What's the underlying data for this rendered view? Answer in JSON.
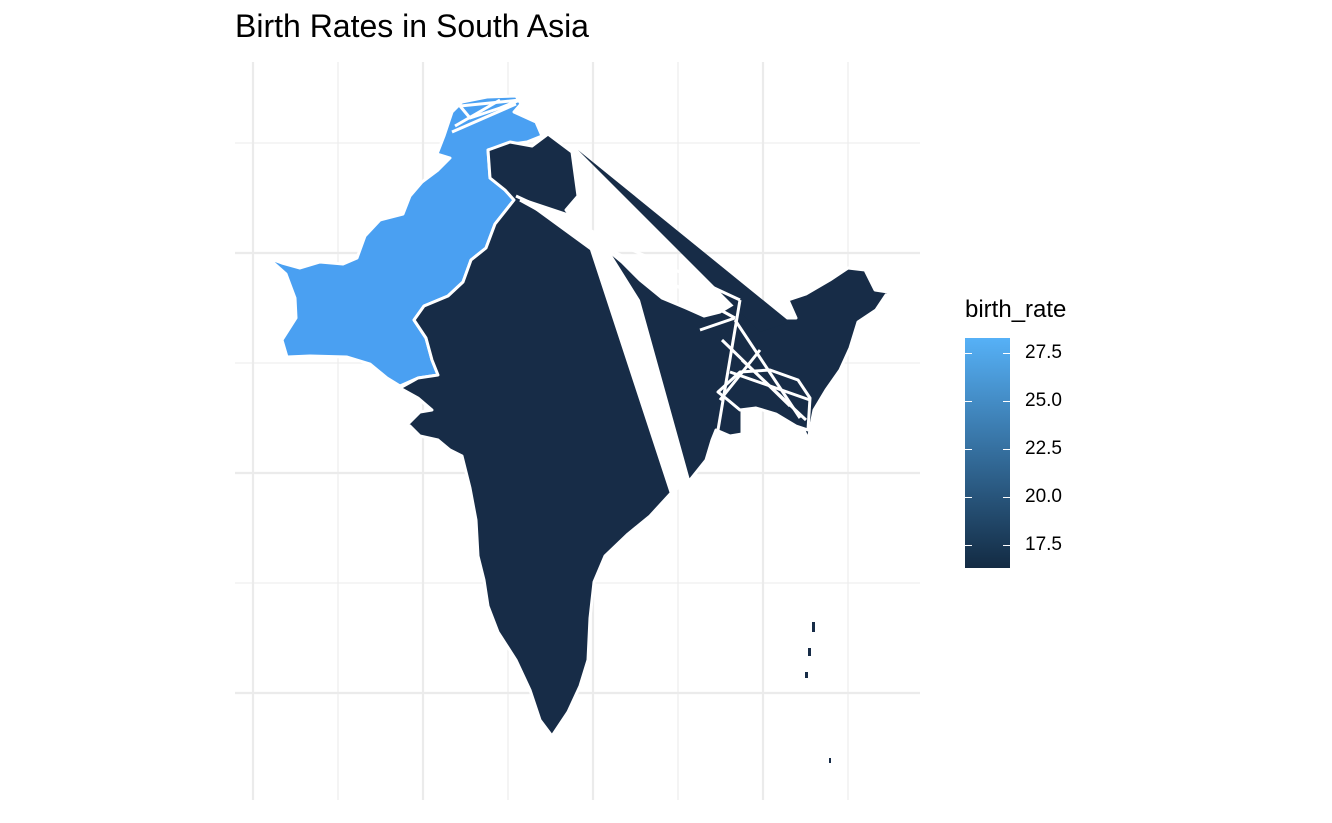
{
  "title": "Birth Rates in South Asia",
  "chart_data": {
    "type": "choropleth",
    "title": "Birth Rates in South Asia",
    "fill_variable": "birth_rate",
    "regions": [
      {
        "name": "Pakistan",
        "birth_rate": 28.0,
        "color": "#4AA0F2"
      },
      {
        "name": "India",
        "birth_rate": 17.0,
        "color": "#172C47"
      },
      {
        "name": "Bangladesh",
        "birth_rate": 17.0,
        "color": "#172C47"
      }
    ],
    "legend": {
      "title": "birth_rate",
      "position": "right",
      "low_color": "#132B43",
      "high_color": "#56B1F7",
      "range": [
        16.3,
        28.3
      ],
      "ticks": [
        27.5,
        25.0,
        22.5,
        20.0,
        17.5
      ],
      "tick_labels": [
        "27.5",
        "25.0",
        "22.5",
        "20.0",
        "17.5"
      ]
    },
    "grid": true,
    "axis_text": false
  }
}
